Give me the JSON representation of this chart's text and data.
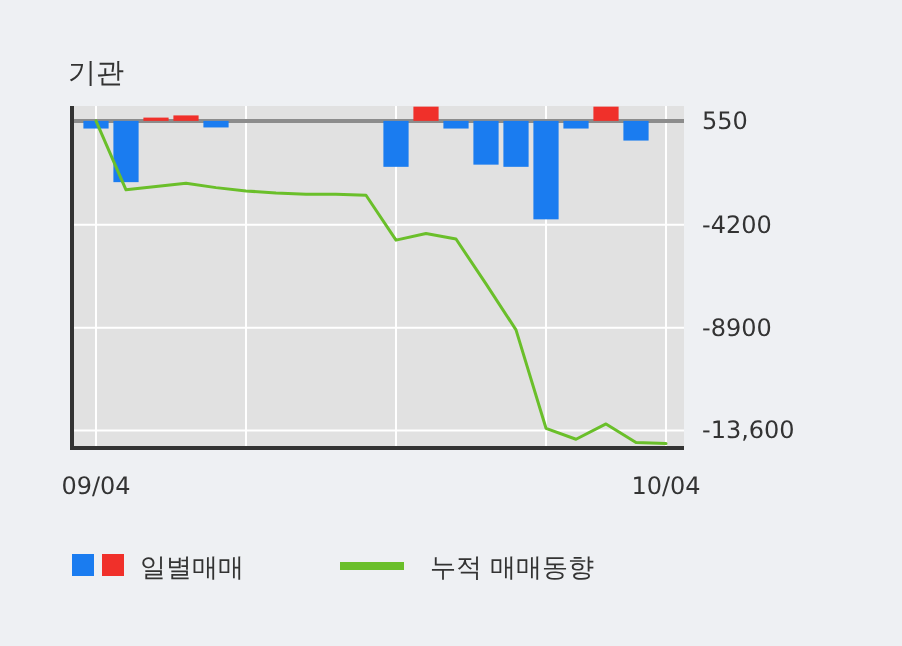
{
  "chart_data": {
    "type": "bar",
    "title": "기관",
    "categories": [
      "09/04",
      null,
      null,
      null,
      null,
      null,
      null,
      null,
      null,
      null,
      null,
      null,
      null,
      null,
      null,
      null,
      null,
      null,
      null,
      "10/04"
    ],
    "series": [
      {
        "name": "일별매매",
        "base": [
          550,
          550,
          550,
          550,
          550,
          null,
          null,
          null,
          null,
          null,
          550,
          550,
          550,
          550,
          550,
          550,
          550,
          550,
          550,
          null
        ],
        "values": [
          -350,
          -2800,
          150,
          250,
          -300,
          null,
          null,
          null,
          null,
          null,
          -2100,
          650,
          -350,
          -2000,
          -2100,
          -4500,
          -350,
          650,
          -900,
          null
        ],
        "colors": [
          "#1a7cf0",
          "#1a7cf0",
          "#f0302a",
          "#f0302a",
          "#1a7cf0",
          null,
          null,
          null,
          null,
          null,
          "#1a7cf0",
          "#f0302a",
          "#1a7cf0",
          "#1a7cf0",
          "#1a7cf0",
          "#1a7cf0",
          "#1a7cf0",
          "#f0302a",
          "#1a7cf0",
          null
        ]
      },
      {
        "type": "line",
        "name": "누적 매매동향",
        "color": "#6abf2a",
        "values": [
          550,
          -2600,
          -2450,
          -2300,
          -2500,
          -2650,
          -2750,
          -2800,
          -2800,
          -2850,
          -4900,
          -4600,
          -4850,
          -6900,
          -9000,
          -13500,
          -14000,
          -13300,
          -14150,
          -14200
        ]
      }
    ],
    "ylim": [
      -14400,
      1230
    ],
    "yticks": [
      550,
      -4200,
      -8900,
      {
        "value": -13600,
        "label": "-13,600"
      }
    ],
    "ref_lines": [
      {
        "axis": "y",
        "value": 550,
        "color": "#8c8c8c"
      }
    ],
    "grid": true,
    "legend": "bottom"
  }
}
